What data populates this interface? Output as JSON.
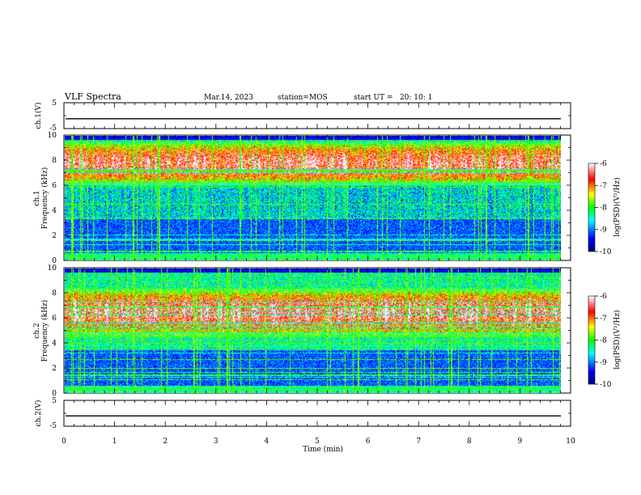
{
  "header": {
    "title": "VLF Spectra",
    "date": "Mar.14, 2023",
    "station": "station=MOS",
    "start": "start UT =   20: 10: 1"
  },
  "colors": {
    "scale": [
      "#00007a",
      "#0000ff",
      "#00ffff",
      "#00ff00",
      "#ffff00",
      "#ff0000",
      "#ffffff"
    ]
  },
  "chart_data": [
    {
      "type": "line",
      "panel": "waveform-ch1",
      "ylabel": "ch.1(V)",
      "ylim": [
        -5,
        5
      ],
      "yticks": [
        "5",
        "-5"
      ],
      "x": [
        0,
        10
      ],
      "y": [
        -1.2,
        -1.2
      ]
    },
    {
      "type": "heatmap",
      "panel": "spectrogram-ch1",
      "ylabel": "ch.1\nFrequency (kHz)",
      "ylim": [
        0,
        10
      ],
      "yticks": [
        "0",
        "2",
        "4",
        "6",
        "8",
        "10"
      ],
      "xlim": [
        0,
        9.8
      ],
      "band_khz": [
        3.5,
        9.6
      ],
      "peak_band_khz": [
        6.0,
        9.6
      ],
      "colorbar": {
        "label": "log(PSD)(V²/Hz)",
        "range": [
          -10,
          -6
        ],
        "ticks": [
          "-6",
          "-7",
          "-8",
          "-9",
          "-10"
        ]
      }
    },
    {
      "type": "heatmap",
      "panel": "spectrogram-ch2",
      "ylabel": "ch.2\nFrequency (kHz)",
      "ylim": [
        0,
        10
      ],
      "yticks": [
        "0",
        "2",
        "4",
        "6",
        "8",
        "10"
      ],
      "xlim": [
        0,
        9.8
      ],
      "band_khz": [
        3.5,
        9.6
      ],
      "peak_band_khz": [
        4.5,
        8.5
      ],
      "colorbar": {
        "label": "log(PSD)(V²/Hz)",
        "range": [
          -10,
          -6
        ],
        "ticks": [
          "-6",
          "-7",
          "-8",
          "-9",
          "-10"
        ]
      }
    },
    {
      "type": "line",
      "panel": "waveform-ch2",
      "ylabel": "ch.2(V)",
      "ylim": [
        -5,
        5
      ],
      "yticks": [
        "5",
        "-5"
      ],
      "x": [
        0,
        10
      ],
      "y": [
        -1.0,
        -1.0
      ]
    }
  ],
  "xaxis": {
    "label": "Time (min)",
    "ticks": [
      "0",
      "1",
      "2",
      "3",
      "4",
      "5",
      "6",
      "7",
      "8",
      "9",
      "10"
    ],
    "range": [
      0,
      10
    ]
  }
}
